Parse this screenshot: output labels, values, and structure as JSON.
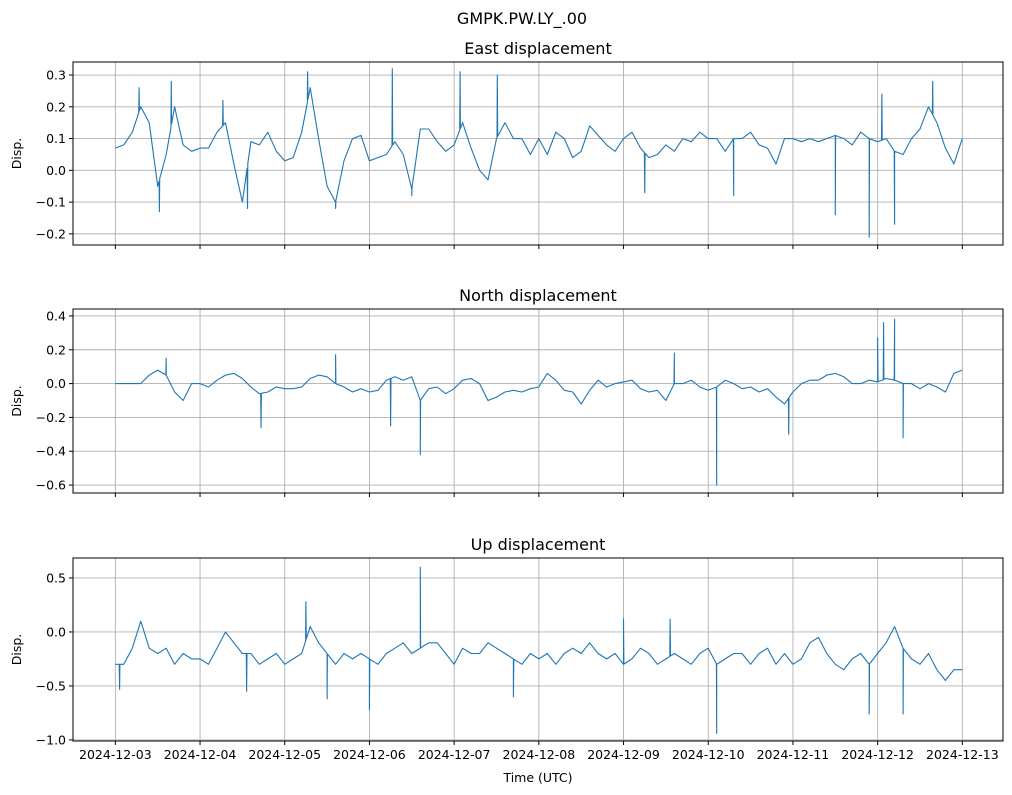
{
  "chart_data": {
    "type": "line",
    "title": "GMPK.PW.LY_.00",
    "xlabel": "Time (UTC)",
    "x_tick_labels": [
      "2024-12-03",
      "2024-12-04",
      "2024-12-05",
      "2024-12-06",
      "2024-12-07",
      "2024-12-08",
      "2024-12-09",
      "2024-12-10",
      "2024-12-11",
      "2024-12-12",
      "2024-12-13"
    ],
    "x_unit": "days since 2024-12-03",
    "xlim": [
      -0.5,
      10.48
    ],
    "grid": true,
    "color": "#1f77b4",
    "panels": [
      {
        "title": "East displacement",
        "ylabel": "Disp.",
        "ylim": [
          -0.235,
          0.341
        ],
        "yticks": [
          -0.2,
          -0.1,
          0.0,
          0.1,
          0.2,
          0.3
        ],
        "ytick_labels": [
          "−0.2",
          "−0.1",
          "0.0",
          "0.1",
          "0.2",
          "0.3"
        ],
        "x_start": 0,
        "x_step": 0.1,
        "values": [
          0.07,
          0.08,
          0.12,
          0.2,
          0.15,
          -0.05,
          0.05,
          0.2,
          0.08,
          0.06,
          0.07,
          0.07,
          0.12,
          0.15,
          0.02,
          -0.1,
          0.09,
          0.08,
          0.12,
          0.06,
          0.03,
          0.04,
          0.12,
          0.26,
          0.1,
          -0.05,
          -0.1,
          0.03,
          0.1,
          0.11,
          0.03,
          0.04,
          0.05,
          0.09,
          0.05,
          -0.06,
          0.13,
          0.13,
          0.09,
          0.06,
          0.08,
          0.15,
          0.07,
          0.0,
          -0.03,
          0.1,
          0.15,
          0.1,
          0.1,
          0.05,
          0.1,
          0.05,
          0.12,
          0.1,
          0.04,
          0.06,
          0.14,
          0.11,
          0.08,
          0.06,
          0.1,
          0.12,
          0.07,
          0.04,
          0.05,
          0.08,
          0.06,
          0.1,
          0.09,
          0.12,
          0.1,
          0.1,
          0.06,
          0.1,
          0.1,
          0.12,
          0.08,
          0.07,
          0.02,
          0.1,
          0.1,
          0.09,
          0.1,
          0.09,
          0.1,
          0.11,
          0.1,
          0.08,
          0.12,
          0.1,
          0.09,
          0.1,
          0.06,
          0.05,
          0.1,
          0.13,
          0.2,
          0.15,
          0.07,
          0.02,
          0.1
        ],
        "spikes": [
          [
            0.28,
            0.26
          ],
          [
            0.52,
            -0.13
          ],
          [
            0.66,
            0.28
          ],
          [
            1.27,
            0.22
          ],
          [
            1.56,
            -0.12
          ],
          [
            2.27,
            0.31
          ],
          [
            2.6,
            -0.12
          ],
          [
            3.27,
            0.32
          ],
          [
            3.5,
            -0.08
          ],
          [
            4.07,
            0.31
          ],
          [
            4.51,
            0.3
          ],
          [
            6.25,
            -0.07
          ],
          [
            7.3,
            -0.08
          ],
          [
            8.5,
            -0.14
          ],
          [
            8.9,
            -0.21
          ],
          [
            9.05,
            0.24
          ],
          [
            9.2,
            -0.17
          ],
          [
            9.65,
            0.28
          ]
        ]
      },
      {
        "title": "North displacement",
        "ylabel": "Disp.",
        "ylim": [
          -0.647,
          0.441
        ],
        "yticks": [
          -0.6,
          -0.4,
          -0.2,
          0.0,
          0.2,
          0.4
        ],
        "ytick_labels": [
          "−0.6",
          "−0.4",
          "−0.2",
          "0.0",
          "0.2",
          "0.4"
        ],
        "x_start": 0,
        "x_step": 0.1,
        "values": [
          0.0,
          0.0,
          0.0,
          0.0,
          0.05,
          0.08,
          0.05,
          -0.05,
          -0.1,
          0.0,
          0.0,
          -0.02,
          0.02,
          0.05,
          0.06,
          0.03,
          -0.02,
          -0.06,
          -0.05,
          -0.02,
          -0.03,
          -0.03,
          -0.02,
          0.03,
          0.05,
          0.04,
          0.0,
          -0.02,
          -0.05,
          -0.03,
          -0.05,
          -0.04,
          0.02,
          0.04,
          0.02,
          0.04,
          -0.1,
          -0.03,
          -0.02,
          -0.06,
          -0.03,
          0.02,
          0.03,
          0.0,
          -0.1,
          -0.08,
          -0.05,
          -0.04,
          -0.05,
          -0.03,
          -0.02,
          0.06,
          0.02,
          -0.04,
          -0.05,
          -0.12,
          -0.04,
          0.02,
          -0.02,
          0.0,
          0.01,
          0.02,
          -0.03,
          -0.05,
          -0.04,
          -0.1,
          0.0,
          0.0,
          0.02,
          -0.02,
          -0.04,
          -0.02,
          0.02,
          0.0,
          -0.03,
          -0.02,
          -0.05,
          -0.03,
          -0.08,
          -0.12,
          -0.05,
          0.0,
          0.02,
          0.02,
          0.05,
          0.06,
          0.04,
          0.0,
          0.0,
          0.02,
          0.01,
          0.03,
          0.02,
          0.0,
          0.0,
          -0.03,
          0.0,
          -0.02,
          -0.05,
          0.06,
          0.08
        ],
        "spikes": [
          [
            0.6,
            0.15
          ],
          [
            1.72,
            -0.26
          ],
          [
            2.6,
            0.17
          ],
          [
            3.25,
            -0.25
          ],
          [
            3.6,
            -0.42
          ],
          [
            6.6,
            0.18
          ],
          [
            7.1,
            -0.6
          ],
          [
            7.95,
            -0.3
          ],
          [
            9.0,
            0.27
          ],
          [
            9.07,
            0.36
          ],
          [
            9.2,
            0.38
          ],
          [
            9.3,
            -0.32
          ]
        ]
      },
      {
        "title": "Up displacement",
        "ylabel": "Disp.",
        "ylim": [
          -1.01,
          0.685
        ],
        "yticks": [
          -1.0,
          -0.5,
          0.0,
          0.5
        ],
        "ytick_labels": [
          "−1.0",
          "−0.5",
          "0.0",
          "0.5"
        ],
        "x_start": 0,
        "x_step": 0.1,
        "values": [
          -0.3,
          -0.3,
          -0.15,
          0.1,
          -0.15,
          -0.2,
          -0.15,
          -0.3,
          -0.2,
          -0.25,
          -0.25,
          -0.3,
          -0.15,
          0.0,
          -0.1,
          -0.2,
          -0.2,
          -0.3,
          -0.25,
          -0.2,
          -0.3,
          -0.25,
          -0.2,
          0.05,
          -0.1,
          -0.2,
          -0.3,
          -0.2,
          -0.25,
          -0.2,
          -0.25,
          -0.3,
          -0.2,
          -0.15,
          -0.1,
          -0.2,
          -0.15,
          -0.1,
          -0.1,
          -0.2,
          -0.3,
          -0.15,
          -0.2,
          -0.2,
          -0.1,
          -0.15,
          -0.2,
          -0.25,
          -0.3,
          -0.2,
          -0.25,
          -0.2,
          -0.3,
          -0.2,
          -0.15,
          -0.2,
          -0.1,
          -0.2,
          -0.25,
          -0.2,
          -0.3,
          -0.25,
          -0.15,
          -0.2,
          -0.3,
          -0.25,
          -0.2,
          -0.25,
          -0.3,
          -0.2,
          -0.15,
          -0.3,
          -0.25,
          -0.2,
          -0.2,
          -0.3,
          -0.2,
          -0.15,
          -0.3,
          -0.2,
          -0.3,
          -0.25,
          -0.1,
          -0.05,
          -0.2,
          -0.3,
          -0.35,
          -0.25,
          -0.2,
          -0.3,
          -0.2,
          -0.1,
          0.05,
          -0.15,
          -0.25,
          -0.3,
          -0.2,
          -0.35,
          -0.45,
          -0.35,
          -0.35
        ],
        "spikes": [
          [
            0.05,
            -0.53
          ],
          [
            1.55,
            -0.55
          ],
          [
            2.25,
            0.28
          ],
          [
            2.5,
            -0.62
          ],
          [
            3.0,
            -0.72
          ],
          [
            3.6,
            0.6
          ],
          [
            4.7,
            -0.6
          ],
          [
            6.0,
            0.12
          ],
          [
            6.55,
            0.12
          ],
          [
            7.1,
            -0.94
          ],
          [
            8.9,
            -0.76
          ],
          [
            9.3,
            -0.76
          ]
        ]
      }
    ]
  }
}
